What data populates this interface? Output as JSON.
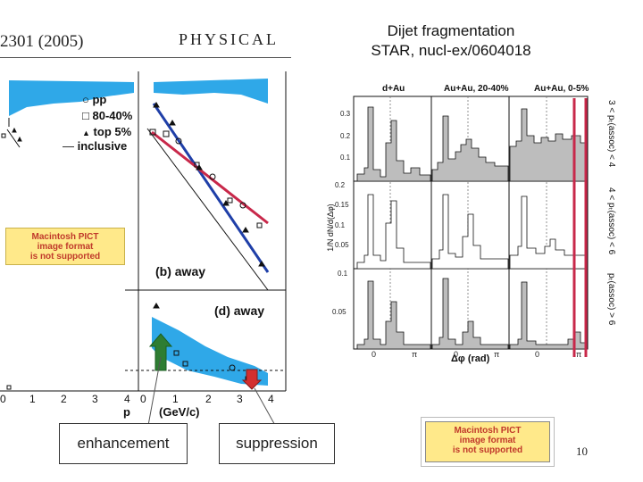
{
  "header": {
    "citation": "2301 (2005)",
    "journal": "PHYSICAL",
    "title_line1": "Dijet fragmentation",
    "title_line2": "STAR, nucl-ex/0604018"
  },
  "left_plot": {
    "legend": {
      "pp": "pp",
      "mid": "80-40%",
      "top": "top 5%",
      "inclusive": "inclusive"
    },
    "panel_b_label": "(b) away",
    "panel_d_label": "(d) away",
    "x_ticks_left": [
      "0",
      "1",
      "2",
      "3",
      "4"
    ],
    "x_ticks_right": [
      "0",
      "1",
      "2",
      "3",
      "4"
    ],
    "x_label_left": "p",
    "x_label_right": "(GeV/c)"
  },
  "right_plot": {
    "column_titles": [
      "d+Au",
      "Au+Au, 20-40%",
      "Au+Au, 0-5%"
    ],
    "row_labels": [
      "3 < pₜ(assoc) < 4",
      "4 < pₜ(assoc) < 6",
      "pₜ(assoc) > 6"
    ],
    "y_axis_label": "1/N dN/d(Δφ)",
    "y_ticks_row1": [
      "0.3",
      "0.2",
      "0.1"
    ],
    "y_ticks_row2": [
      "0.2",
      "0.15",
      "0.1",
      "0.05"
    ],
    "y_ticks_row3": [
      "0.1",
      "0.05"
    ],
    "x_tick_labels": [
      "0",
      "π",
      "0",
      "π",
      "0",
      "π"
    ],
    "x_axis_label": "Δφ (rad)"
  },
  "pict_placeholder": {
    "line1": "Macintosh PICT",
    "line2": "image format",
    "line3": "is not supported"
  },
  "annotations": {
    "enhancement": "enhancement",
    "suppression": "suppression"
  },
  "colors": {
    "band": "#2fa8e8",
    "red_line": "#c8284a",
    "blue_line": "#1f3fa8",
    "green_arrow": "#2e7d32",
    "red_arrow": "#d32f2f",
    "hist_fill": "#bdbdbd"
  },
  "page_number": "10"
}
